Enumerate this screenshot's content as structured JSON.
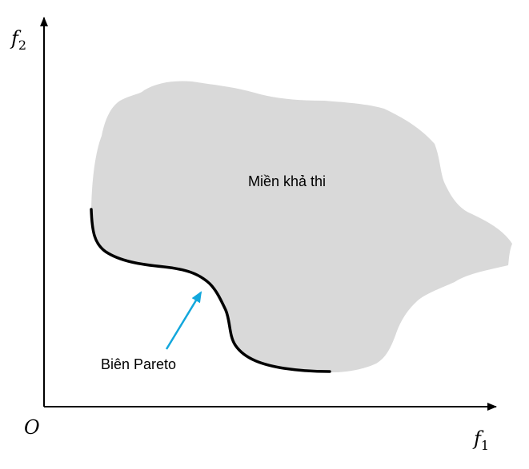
{
  "axes": {
    "origin_label": "O",
    "x_symbol": "f",
    "x_subscript": "1",
    "y_symbol": "f",
    "y_subscript": "2"
  },
  "regions": {
    "feasible_label": "Miền khả thi"
  },
  "annotations": {
    "pareto_label": "Biên Pareto"
  },
  "colors": {
    "feasible_fill": "#d9d9d9",
    "pareto_curve": "#000000",
    "pointer_arrow": "#12a7dc",
    "axis": "#000000"
  }
}
